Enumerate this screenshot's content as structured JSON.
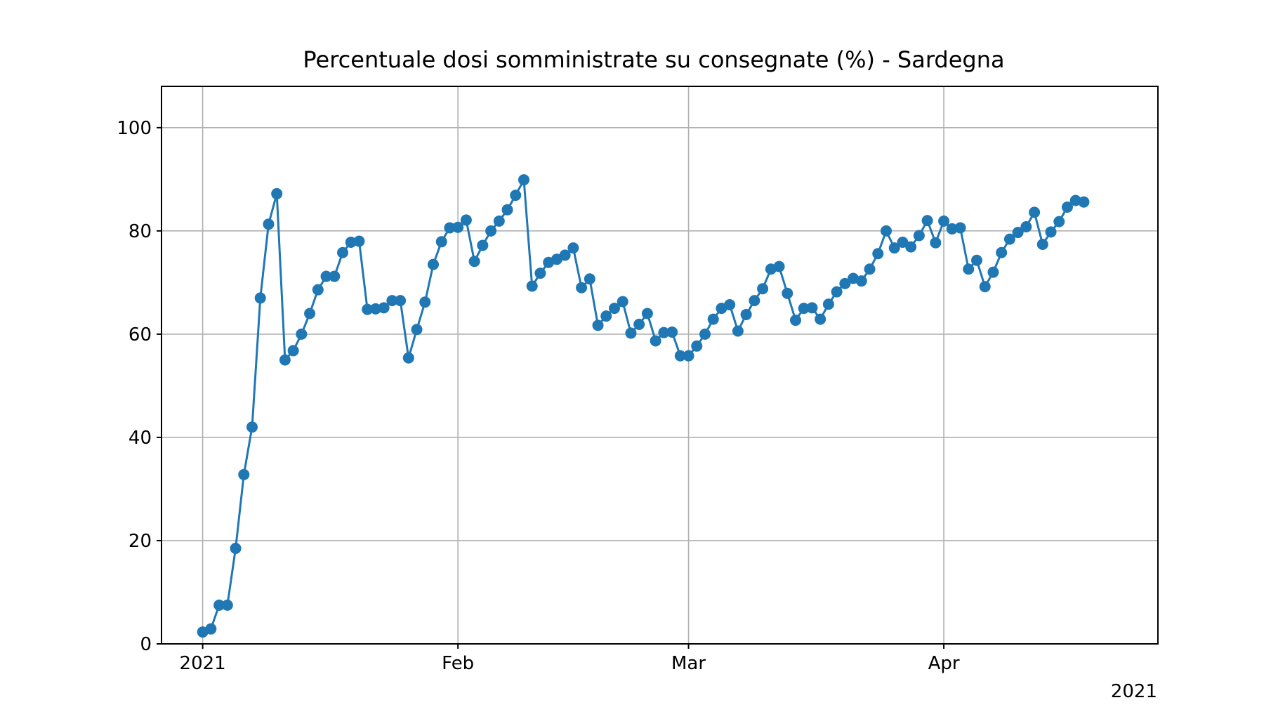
{
  "chart_data": {
    "type": "line",
    "title": "Percentuale dosi somministrate su consegnate (%) - Sardegna",
    "xlabel": "",
    "ylabel": "",
    "x_start": "2021-01-01",
    "x_end": "2021-04-20",
    "xlim": [
      "2020-12-27",
      "2021-04-27"
    ],
    "ylim": [
      0,
      108
    ],
    "x_ticks": [
      {
        "date": "2021-01-01",
        "label": "2021"
      },
      {
        "date": "2021-02-01",
        "label": "Feb"
      },
      {
        "date": "2021-03-01",
        "label": "Mar"
      },
      {
        "date": "2021-04-01",
        "label": "Apr"
      }
    ],
    "x_offset_label": "2021",
    "y_ticks": [
      0,
      20,
      40,
      60,
      80,
      100
    ],
    "grid": true,
    "series": [
      {
        "color": "#1f77b4",
        "marker": "circle",
        "values": [
          2.3,
          2.9,
          7.5,
          7.5,
          18.5,
          32.8,
          42.0,
          67.0,
          81.3,
          87.2,
          55.0,
          56.8,
          60.0,
          64.0,
          68.6,
          71.2,
          71.2,
          75.8,
          77.8,
          78.0,
          64.8,
          64.9,
          65.1,
          66.5,
          66.5,
          55.4,
          60.9,
          66.2,
          73.5,
          77.9,
          80.6,
          80.7,
          82.1,
          74.1,
          77.2,
          80.0,
          81.9,
          84.1,
          86.9,
          89.9,
          69.3,
          71.8,
          73.9,
          74.5,
          75.3,
          76.7,
          69.0,
          70.7,
          61.7,
          63.5,
          65.0,
          66.3,
          60.2,
          61.9,
          64.0,
          58.7,
          60.3,
          60.4,
          55.8,
          55.8,
          57.7,
          60.0,
          62.9,
          65.0,
          65.7,
          60.6,
          63.8,
          66.5,
          68.8,
          72.6,
          73.1,
          67.9,
          62.7,
          65.0,
          65.1,
          62.9,
          65.8,
          68.2,
          69.8,
          70.8,
          70.3,
          72.6,
          75.6,
          80.0,
          76.7,
          77.8,
          76.9,
          79.1,
          82.0,
          77.7,
          81.9,
          80.4,
          80.6,
          72.6,
          74.3,
          69.2,
          72.0,
          75.8,
          78.4,
          79.7,
          80.8,
          83.6,
          77.4,
          79.8,
          81.8,
          84.6,
          85.9,
          85.6
        ]
      }
    ]
  }
}
